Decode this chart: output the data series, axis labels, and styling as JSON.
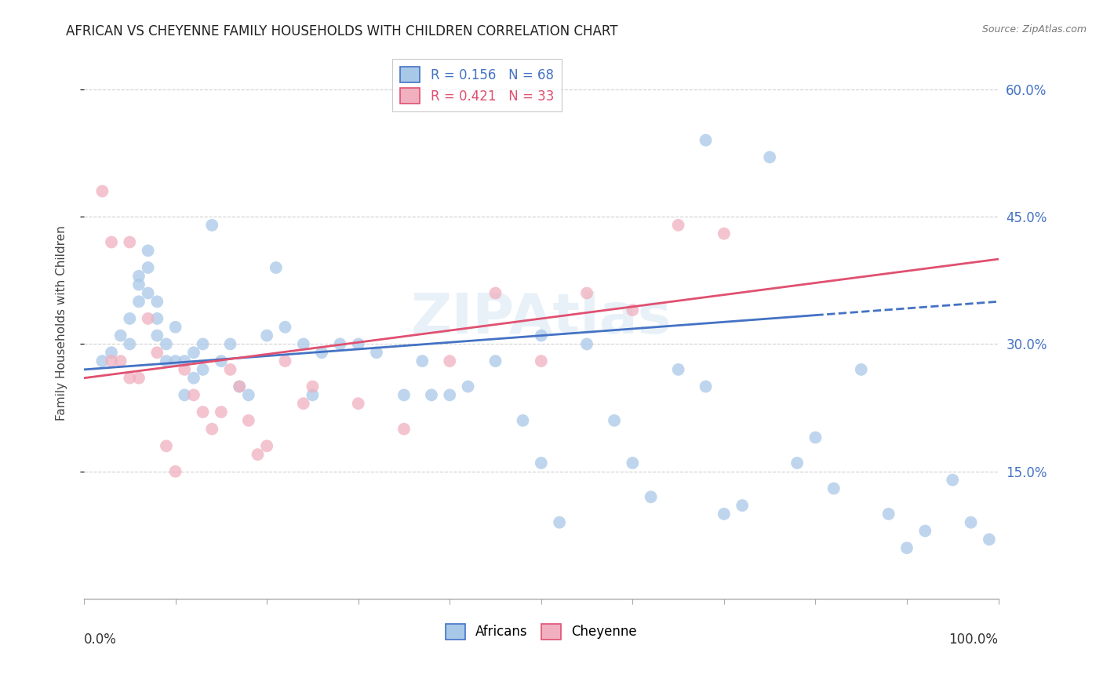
{
  "title": "AFRICAN VS CHEYENNE FAMILY HOUSEHOLDS WITH CHILDREN CORRELATION CHART",
  "source": "Source: ZipAtlas.com",
  "ylabel": "Family Households with Children",
  "xlim": [
    0,
    100
  ],
  "ylim": [
    0,
    65
  ],
  "ytick_values": [
    15,
    30,
    45,
    60
  ],
  "ytick_labels_right": [
    "15.0%",
    "30.0%",
    "45.0%",
    "60.0%"
  ],
  "watermark": "ZIPAtlas",
  "blue_color": "#a8c8e8",
  "pink_color": "#f0b0c0",
  "blue_line_color": "#4472c4",
  "pink_line_color": "#e05070",
  "grid_color": "#d0d0d0",
  "background_color": "#ffffff",
  "africans_x": [
    2,
    3,
    4,
    5,
    5,
    6,
    6,
    6,
    7,
    7,
    7,
    8,
    8,
    8,
    9,
    9,
    10,
    10,
    11,
    11,
    12,
    12,
    13,
    13,
    14,
    15,
    16,
    17,
    18,
    20,
    21,
    22,
    24,
    25,
    26,
    28,
    30,
    32,
    35,
    37,
    38,
    40,
    42,
    45,
    48,
    50,
    55,
    58,
    60,
    62,
    65,
    68,
    70,
    72,
    75,
    78,
    80,
    82,
    85,
    88,
    90,
    92,
    95,
    97,
    99,
    50,
    52,
    68
  ],
  "africans_y": [
    28,
    29,
    31,
    33,
    30,
    35,
    37,
    38,
    36,
    39,
    41,
    33,
    35,
    31,
    30,
    28,
    32,
    28,
    28,
    24,
    29,
    26,
    30,
    27,
    44,
    28,
    30,
    25,
    24,
    31,
    39,
    32,
    30,
    24,
    29,
    30,
    30,
    29,
    24,
    28,
    24,
    24,
    25,
    28,
    21,
    31,
    30,
    21,
    16,
    12,
    27,
    25,
    10,
    11,
    52,
    16,
    19,
    13,
    27,
    10,
    6,
    8,
    14,
    9,
    7,
    16,
    9,
    54
  ],
  "cheyenne_x": [
    2,
    3,
    3,
    4,
    5,
    5,
    6,
    7,
    8,
    9,
    10,
    11,
    12,
    13,
    14,
    15,
    16,
    17,
    18,
    19,
    20,
    22,
    24,
    25,
    30,
    35,
    40,
    45,
    50,
    55,
    60,
    65,
    70
  ],
  "cheyenne_y": [
    48,
    42,
    28,
    28,
    42,
    26,
    26,
    33,
    29,
    18,
    15,
    27,
    24,
    22,
    20,
    22,
    27,
    25,
    21,
    17,
    18,
    28,
    23,
    25,
    23,
    20,
    28,
    36,
    28,
    36,
    34,
    44,
    43
  ],
  "blue_R": 0.156,
  "blue_N": 68,
  "pink_R": 0.421,
  "pink_N": 33,
  "blue_line_x0": 0,
  "blue_line_y0": 27.0,
  "blue_line_x1": 100,
  "blue_line_y1": 35.0,
  "blue_solid_end": 80,
  "pink_line_x0": 0,
  "pink_line_y0": 26.0,
  "pink_line_x1": 100,
  "pink_line_y1": 40.0
}
